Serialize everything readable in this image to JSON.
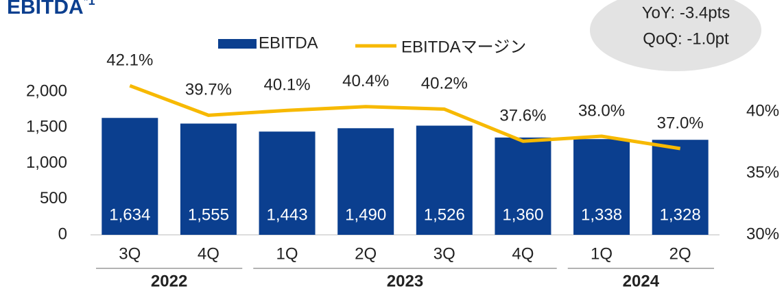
{
  "chart_data": {
    "type": "bar-line",
    "title": "EBITDA",
    "title_note": "*1",
    "annotations": [
      "YoY:  -3.4pts",
      "QoQ: -1.0pt"
    ],
    "categories": [
      "3Q",
      "4Q",
      "1Q",
      "2Q",
      "3Q",
      "4Q",
      "1Q",
      "2Q"
    ],
    "groups": [
      {
        "label": "2022",
        "span": 2
      },
      {
        "label": "2023",
        "span": 4
      },
      {
        "label": "2024",
        "span": 2
      }
    ],
    "series": [
      {
        "name": "EBITDA",
        "color": "#0b3f8f",
        "values": [
          1634,
          1555,
          1443,
          1490,
          1526,
          1360,
          1338,
          1328
        ],
        "value_labels": [
          "1,634",
          "1,555",
          "1,443",
          "1,490",
          "1,526",
          "1,360",
          "1,338",
          "1,328"
        ]
      },
      {
        "name": "EBITDAマージン",
        "color": "#f7b900",
        "axis": "y2",
        "values": [
          42.1,
          39.7,
          40.1,
          40.4,
          40.2,
          37.6,
          38.0,
          37.0
        ],
        "value_labels": [
          "42.1%",
          "39.7%",
          "40.1%",
          "40.4%",
          "40.2%",
          "37.6%",
          "38.0%",
          "37.0%"
        ]
      }
    ],
    "ylim": [
      0,
      2000
    ],
    "yticks": [
      0,
      500,
      {
        "value": 1000,
        "label": "1,000"
      },
      {
        "value": 1500,
        "label": "1,500"
      },
      {
        "value": 2000,
        "label": "2,000"
      }
    ],
    "y2lim": [
      30,
      40
    ],
    "y2ticks": [
      {
        "value": 30,
        "label": "30%"
      },
      {
        "value": 35,
        "label": "35%"
      },
      {
        "value": 40,
        "label": "40%"
      }
    ]
  }
}
